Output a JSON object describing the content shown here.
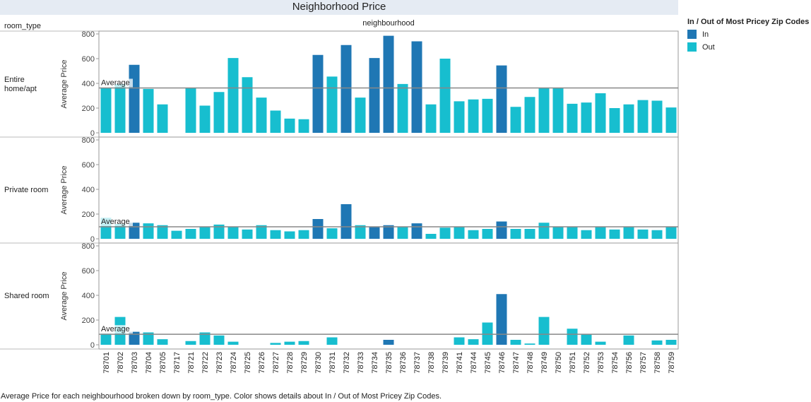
{
  "chart_data": {
    "type": "bar",
    "title": "Neighborhood Price",
    "row_header": "room_type",
    "column_header": "neighbourhood",
    "ylabel": "Average Price",
    "ylim": [
      0,
      800
    ],
    "yticks": [
      0,
      200,
      400,
      600,
      800
    ],
    "average_label": "Average",
    "legend": {
      "title": "In / Out of Most Pricey Zip Codes",
      "items": [
        {
          "label": "In",
          "color": "#1f77b4"
        },
        {
          "label": "Out",
          "color": "#17becf"
        }
      ]
    },
    "categories": [
      "78701",
      "78702",
      "78703",
      "78704",
      "78705",
      "78717",
      "78721",
      "78722",
      "78723",
      "78724",
      "78725",
      "78726",
      "78727",
      "78728",
      "78729",
      "78730",
      "78731",
      "78732",
      "78733",
      "78734",
      "78735",
      "78736",
      "78737",
      "78738",
      "78739",
      "78741",
      "78744",
      "78745",
      "78746",
      "78747",
      "78748",
      "78749",
      "78750",
      "78751",
      "78752",
      "78753",
      "78754",
      "78756",
      "78757",
      "78758",
      "78759"
    ],
    "group": [
      "Out",
      "Out",
      "In",
      "Out",
      "Out",
      "Out",
      "Out",
      "Out",
      "Out",
      "Out",
      "Out",
      "Out",
      "Out",
      "Out",
      "Out",
      "In",
      "Out",
      "In",
      "Out",
      "In",
      "In",
      "Out",
      "In",
      "Out",
      "Out",
      "Out",
      "Out",
      "Out",
      "In",
      "Out",
      "Out",
      "Out",
      "Out",
      "Out",
      "Out",
      "Out",
      "Out",
      "Out",
      "Out",
      "Out",
      "Out"
    ],
    "rows": [
      {
        "name": "Entire home/apt",
        "average": 363,
        "values": [
          365,
          395,
          550,
          355,
          230,
          null,
          365,
          220,
          330,
          605,
          450,
          285,
          180,
          115,
          110,
          630,
          455,
          710,
          285,
          605,
          785,
          395,
          740,
          230,
          600,
          255,
          270,
          275,
          545,
          210,
          290,
          365,
          365,
          235,
          245,
          320,
          200,
          230,
          265,
          260,
          205
        ]
      },
      {
        "name": "Private room",
        "average": 97,
        "values": [
          170,
          120,
          130,
          125,
          110,
          65,
          80,
          100,
          115,
          100,
          75,
          110,
          70,
          60,
          70,
          160,
          85,
          280,
          110,
          100,
          110,
          100,
          125,
          40,
          90,
          100,
          70,
          80,
          140,
          80,
          80,
          130,
          100,
          100,
          70,
          100,
          75,
          100,
          75,
          70,
          100
        ]
      },
      {
        "name": "Shared room",
        "average": 85,
        "values": [
          90,
          225,
          105,
          100,
          45,
          null,
          30,
          100,
          75,
          25,
          null,
          null,
          15,
          25,
          30,
          null,
          60,
          null,
          null,
          null,
          40,
          null,
          null,
          null,
          null,
          60,
          45,
          180,
          410,
          40,
          10,
          225,
          null,
          130,
          85,
          25,
          null,
          75,
          null,
          35,
          40
        ]
      }
    ]
  },
  "caption": "Average Price for each neighbourhood broken down by room_type.  Color shows details about In / Out of Most Pricey Zip Codes."
}
